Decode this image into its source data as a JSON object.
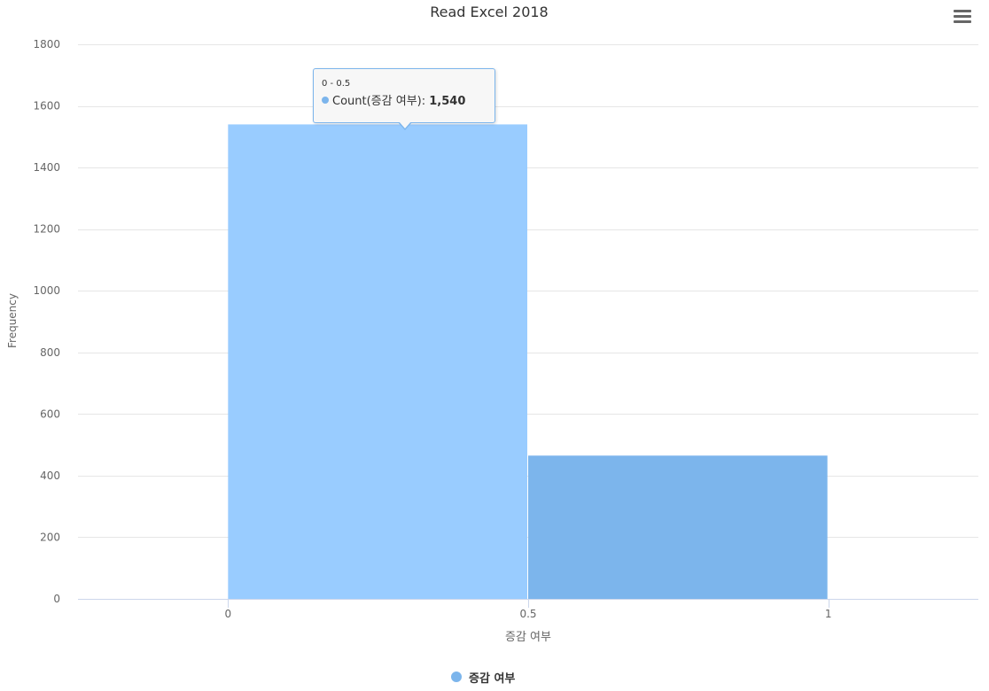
{
  "chart_data": {
    "type": "bar",
    "title": "Read Excel 2018",
    "xlabel": "증감 여부",
    "ylabel": "Frequency",
    "bins": [
      {
        "from": 0,
        "to": 0.5,
        "count": 1540
      },
      {
        "from": 0.5,
        "to": 1,
        "count": 465
      }
    ],
    "x_ticks": [
      "0",
      "0.5",
      "1"
    ],
    "x_tick_values": [
      0,
      0.5,
      1
    ],
    "xlim": [
      -0.25,
      1.25
    ],
    "ylim": [
      0,
      1800
    ],
    "y_ticks": [
      0,
      200,
      400,
      600,
      800,
      1000,
      1200,
      1400,
      1600,
      1800
    ],
    "grid": true,
    "legend": {
      "label": "증감 여부",
      "placement": "bottom-center"
    },
    "colors": {
      "bar": "#7cb5ec",
      "bar_hover": "#99ccff",
      "grid": "#e6e6e6",
      "axis_line": "#ccd6eb",
      "text": "#666666"
    },
    "hovered_bin": 0
  },
  "tooltip": {
    "header": "0 - 0.5",
    "series_label": "Count(증감 여부): ",
    "value": "1,540"
  },
  "menu": {
    "icon": "hamburger-menu-icon"
  }
}
